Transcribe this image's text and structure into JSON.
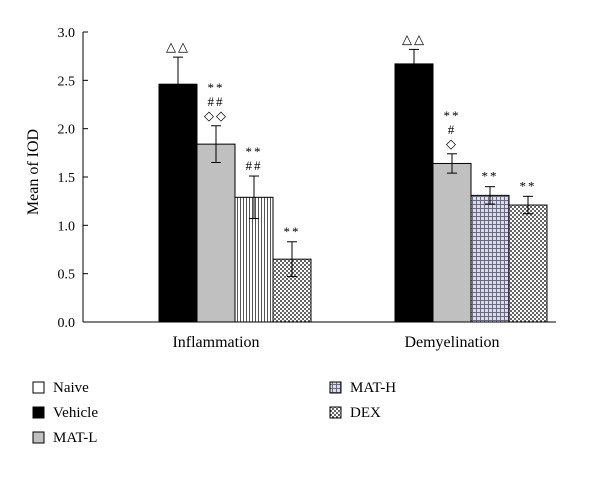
{
  "chart_data": {
    "type": "bar",
    "categories": [
      "Inflammation",
      "Demyelination"
    ],
    "ylabel": "Mean of IOD",
    "xlabel": "",
    "ylim": [
      0,
      3.0
    ],
    "yticks": [
      "0.0",
      "0.5",
      "1.0",
      "1.5",
      "2.0",
      "2.5",
      "3.0"
    ],
    "grid": false,
    "legend_placement": "bottom-left",
    "legend": [
      "Naive",
      "Vehicle",
      "MAT-L",
      "MAT-H",
      "DEX"
    ],
    "series": [
      {
        "name": "Naive",
        "values": [
          0,
          0
        ],
        "errors": [
          0,
          0
        ],
        "annotations": [
          "",
          ""
        ]
      },
      {
        "name": "Vehicle",
        "values": [
          2.46,
          2.67
        ],
        "errors": [
          0.28,
          0.15
        ],
        "annotations": [
          "△△",
          "△△"
        ]
      },
      {
        "name": "MAT-L",
        "values": [
          1.84,
          1.64
        ],
        "errors": [
          0.19,
          0.1
        ],
        "annotations": [
          "**\n##\n◇◇",
          "**\n#\n◇"
        ]
      },
      {
        "name": "MAT-H",
        "values": [
          1.29,
          1.31
        ],
        "errors": [
          0.22,
          0.09
        ],
        "annotations": [
          "**\n##",
          "**"
        ]
      },
      {
        "name": "DEX",
        "values": [
          0.65,
          1.21
        ],
        "errors": [
          0.18,
          0.09
        ],
        "annotations": [
          "**",
          "**"
        ]
      }
    ]
  }
}
